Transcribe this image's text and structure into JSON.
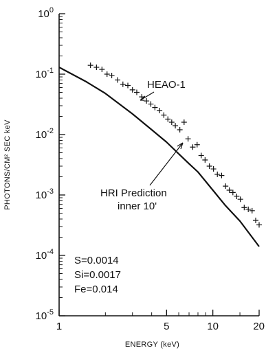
{
  "chart_data": {
    "type": "line",
    "xlabel": "ENERGY (keV)",
    "ylabel": "PHOTONS/CM² SEC keV",
    "x_scale": "log",
    "y_scale": "log",
    "xlim": [
      1,
      20
    ],
    "ylim": [
      1e-05,
      1
    ],
    "grid": false,
    "x_ticks": [
      {
        "value": 1,
        "label": "1"
      },
      {
        "value": 5,
        "label": "5"
      },
      {
        "value": 10,
        "label": "10"
      },
      {
        "value": 20,
        "label": "20"
      }
    ],
    "x_minor_ticks": [
      2,
      3,
      4,
      6,
      7,
      8,
      9,
      15
    ],
    "y_ticks": [
      {
        "value": 1,
        "base": "10",
        "exp": "0"
      },
      {
        "value": 0.1,
        "base": "10",
        "exp": "-1"
      },
      {
        "value": 0.01,
        "base": "10",
        "exp": "-2"
      },
      {
        "value": 0.001,
        "base": "10",
        "exp": "-3"
      },
      {
        "value": 0.0001,
        "base": "10",
        "exp": "-4"
      },
      {
        "value": 1e-05,
        "base": "10",
        "exp": "-5"
      }
    ],
    "series": [
      {
        "name": "HRI Prediction inner 10'",
        "style": "solid line",
        "x": [
          1,
          1.5,
          2,
          3,
          4,
          5,
          6,
          7,
          8,
          10,
          12,
          15,
          20
        ],
        "y": [
          0.13,
          0.075,
          0.048,
          0.022,
          0.012,
          0.0075,
          0.0048,
          0.0033,
          0.0024,
          0.0012,
          0.00068,
          0.00037,
          0.00014
        ]
      },
      {
        "name": "HEAO-1",
        "style": "crosses",
        "x": [
          1.6,
          1.75,
          1.9,
          2.05,
          2.2,
          2.4,
          2.6,
          2.8,
          3.0,
          3.2,
          3.45,
          3.7,
          3.95,
          4.2,
          4.5,
          4.8,
          5.1,
          5.4,
          5.7,
          6.1,
          6.5,
          6.9,
          7.4,
          7.9,
          8.4,
          8.9,
          9.5,
          10.1,
          10.7,
          11.4,
          12.1,
          12.8,
          13.5,
          14.3,
          15.1,
          16.0,
          17.0,
          18.0,
          19.0,
          20.0
        ],
        "y": [
          0.14,
          0.13,
          0.12,
          0.1,
          0.095,
          0.08,
          0.068,
          0.065,
          0.055,
          0.05,
          0.042,
          0.036,
          0.032,
          0.028,
          0.025,
          0.021,
          0.018,
          0.016,
          0.014,
          0.012,
          0.016,
          0.0085,
          0.0062,
          0.0068,
          0.0045,
          0.0038,
          0.003,
          0.0027,
          0.0022,
          0.0021,
          0.0014,
          0.0012,
          0.0011,
          0.00095,
          0.00085,
          0.00062,
          0.00058,
          0.00055,
          0.00038,
          0.00032
        ]
      }
    ],
    "annotations": {
      "heao": "HEAO-1",
      "hri_line1": "HRI  Prediction",
      "hri_line2": "inner 10'",
      "abundances": [
        "S=0.0014",
        "Si=0.0017",
        "Fe=0.014"
      ]
    }
  }
}
